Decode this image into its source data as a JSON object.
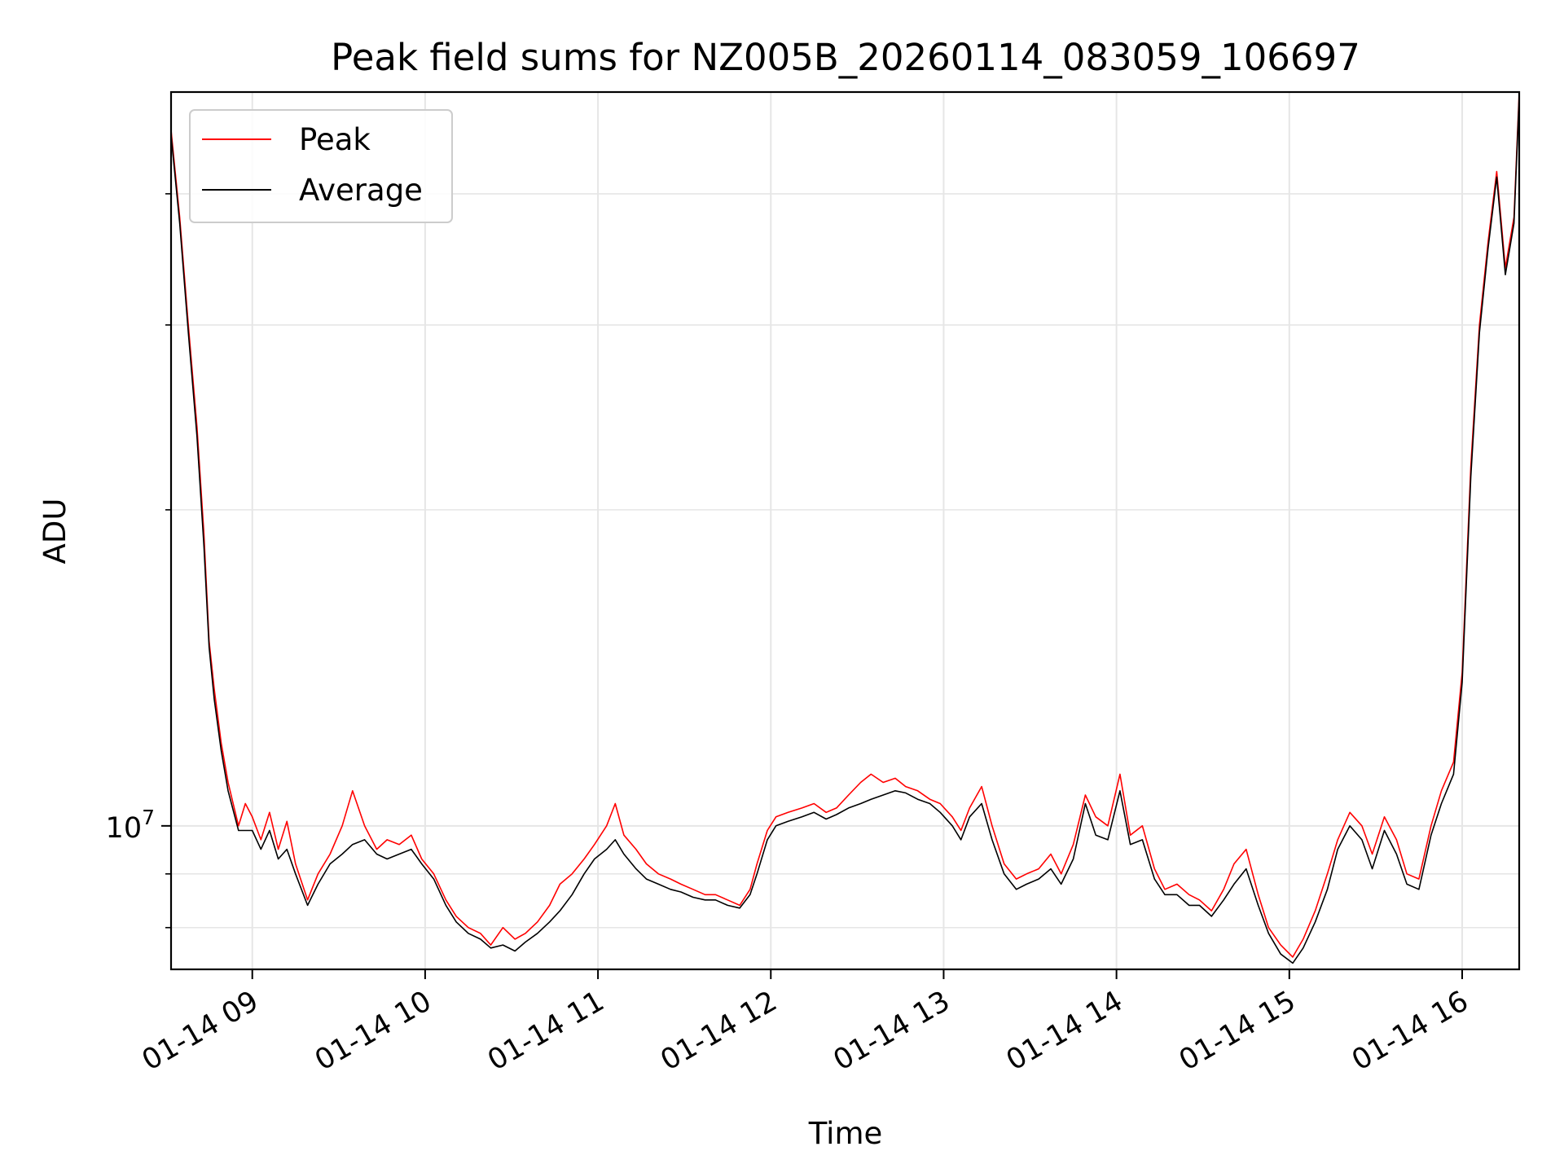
{
  "chart_data": {
    "type": "line",
    "title": "Peak field sums for NZ005B_20260114_083059_106697",
    "xlabel": "Time",
    "ylabel": "ADU",
    "yscale": "log",
    "ylim": [
      7300000,
      50000000
    ],
    "xlim_hours": [
      8.53,
      16.33
    ],
    "grid": true,
    "legend_position": "upper-left",
    "x_ticks": [
      {
        "hour": 9,
        "label": "01-14 09"
      },
      {
        "hour": 10,
        "label": "01-14 10"
      },
      {
        "hour": 11,
        "label": "01-14 11"
      },
      {
        "hour": 12,
        "label": "01-14 12"
      },
      {
        "hour": 13,
        "label": "01-14 13"
      },
      {
        "hour": 14,
        "label": "01-14 14"
      },
      {
        "hour": 15,
        "label": "01-14 15"
      },
      {
        "hour": 16,
        "label": "01-14 16"
      }
    ],
    "y_major_ticks": [
      {
        "value": 10000000,
        "base": "10",
        "exp": "7"
      }
    ],
    "y_minor_ticks": [
      8000000,
      9000000,
      20000000,
      30000000,
      40000000
    ],
    "series": [
      {
        "name": "Peak",
        "color": "#ff0000",
        "x_hours": [
          8.53,
          8.58,
          8.63,
          8.68,
          8.72,
          8.75,
          8.78,
          8.82,
          8.86,
          8.92,
          8.96,
          9.0,
          9.05,
          9.1,
          9.15,
          9.2,
          9.25,
          9.32,
          9.38,
          9.45,
          9.52,
          9.58,
          9.65,
          9.72,
          9.78,
          9.85,
          9.92,
          9.98,
          10.05,
          10.12,
          10.18,
          10.25,
          10.32,
          10.38,
          10.45,
          10.52,
          10.58,
          10.65,
          10.72,
          10.78,
          10.85,
          10.92,
          10.98,
          11.05,
          11.1,
          11.15,
          11.22,
          11.28,
          11.35,
          11.42,
          11.48,
          11.55,
          11.62,
          11.68,
          11.75,
          11.82,
          11.88,
          11.92,
          11.98,
          12.03,
          12.1,
          12.18,
          12.25,
          12.32,
          12.38,
          12.45,
          12.52,
          12.58,
          12.65,
          12.72,
          12.78,
          12.85,
          12.92,
          12.98,
          13.05,
          13.1,
          13.15,
          13.22,
          13.28,
          13.35,
          13.42,
          13.48,
          13.55,
          13.62,
          13.68,
          13.75,
          13.82,
          13.88,
          13.95,
          14.02,
          14.08,
          14.15,
          14.22,
          14.28,
          14.35,
          14.42,
          14.48,
          14.55,
          14.62,
          14.68,
          14.75,
          14.82,
          14.88,
          14.95,
          15.02,
          15.08,
          15.15,
          15.22,
          15.28,
          15.35,
          15.42,
          15.48,
          15.55,
          15.62,
          15.68,
          15.75,
          15.82,
          15.88,
          15.95,
          16.0,
          16.05,
          16.1,
          16.15,
          16.2,
          16.25,
          16.3,
          16.33
        ],
        "values": [
          46000000,
          38000000,
          30000000,
          24000000,
          19000000,
          15000000,
          13500000,
          12000000,
          11000000,
          10000000,
          10500000,
          10200000,
          9700000,
          10300000,
          9500000,
          10100000,
          9200000,
          8500000,
          9000000,
          9400000,
          10000000,
          10800000,
          10000000,
          9500000,
          9700000,
          9600000,
          9800000,
          9300000,
          9000000,
          8500000,
          8200000,
          8000000,
          7900000,
          7700000,
          8000000,
          7800000,
          7900000,
          8100000,
          8400000,
          8800000,
          9000000,
          9300000,
          9600000,
          10000000,
          10500000,
          9800000,
          9500000,
          9200000,
          9000000,
          8900000,
          8800000,
          8700000,
          8600000,
          8600000,
          8500000,
          8400000,
          8700000,
          9200000,
          9900000,
          10200000,
          10300000,
          10400000,
          10500000,
          10300000,
          10400000,
          10700000,
          11000000,
          11200000,
          11000000,
          11100000,
          10900000,
          10800000,
          10600000,
          10500000,
          10200000,
          9900000,
          10400000,
          10900000,
          10000000,
          9200000,
          8900000,
          9000000,
          9100000,
          9400000,
          9000000,
          9600000,
          10700000,
          10200000,
          10000000,
          11200000,
          9800000,
          10000000,
          9100000,
          8700000,
          8800000,
          8600000,
          8500000,
          8300000,
          8700000,
          9200000,
          9500000,
          8600000,
          8000000,
          7700000,
          7500000,
          7800000,
          8300000,
          9000000,
          9700000,
          10300000,
          10000000,
          9400000,
          10200000,
          9700000,
          9000000,
          8900000,
          10000000,
          10800000,
          11500000,
          14000000,
          22000000,
          30000000,
          36000000,
          42000000,
          34000000,
          38000000,
          50000000
        ]
      },
      {
        "name": "Average",
        "color": "#000000",
        "x_hours": [
          8.53,
          8.58,
          8.63,
          8.68,
          8.72,
          8.75,
          8.78,
          8.82,
          8.86,
          8.92,
          8.96,
          9.0,
          9.05,
          9.1,
          9.15,
          9.2,
          9.25,
          9.32,
          9.38,
          9.45,
          9.52,
          9.58,
          9.65,
          9.72,
          9.78,
          9.85,
          9.92,
          9.98,
          10.05,
          10.12,
          10.18,
          10.25,
          10.32,
          10.38,
          10.45,
          10.52,
          10.58,
          10.65,
          10.72,
          10.78,
          10.85,
          10.92,
          10.98,
          11.05,
          11.1,
          11.15,
          11.22,
          11.28,
          11.35,
          11.42,
          11.48,
          11.55,
          11.62,
          11.68,
          11.75,
          11.82,
          11.88,
          11.92,
          11.98,
          12.03,
          12.1,
          12.18,
          12.25,
          12.32,
          12.38,
          12.45,
          12.52,
          12.58,
          12.65,
          12.72,
          12.78,
          12.85,
          12.92,
          12.98,
          13.05,
          13.1,
          13.15,
          13.22,
          13.28,
          13.35,
          13.42,
          13.48,
          13.55,
          13.62,
          13.68,
          13.75,
          13.82,
          13.88,
          13.95,
          14.02,
          14.08,
          14.15,
          14.22,
          14.28,
          14.35,
          14.42,
          14.48,
          14.55,
          14.62,
          14.68,
          14.75,
          14.82,
          14.88,
          14.95,
          15.02,
          15.08,
          15.15,
          15.22,
          15.28,
          15.35,
          15.42,
          15.48,
          15.55,
          15.62,
          15.68,
          15.75,
          15.82,
          15.88,
          15.95,
          16.0,
          16.05,
          16.1,
          16.15,
          16.2,
          16.25,
          16.3,
          16.33
        ],
        "values": [
          45500000,
          37500000,
          29500000,
          23500000,
          18500000,
          14800000,
          13200000,
          11800000,
          10800000,
          9900000,
          9900000,
          9900000,
          9500000,
          9900000,
          9300000,
          9500000,
          9000000,
          8400000,
          8800000,
          9200000,
          9400000,
          9600000,
          9700000,
          9400000,
          9300000,
          9400000,
          9500000,
          9200000,
          8900000,
          8400000,
          8100000,
          7900000,
          7800000,
          7650000,
          7700000,
          7600000,
          7750000,
          7900000,
          8100000,
          8300000,
          8600000,
          9000000,
          9300000,
          9500000,
          9700000,
          9400000,
          9100000,
          8900000,
          8800000,
          8700000,
          8650000,
          8550000,
          8500000,
          8500000,
          8400000,
          8350000,
          8600000,
          9000000,
          9700000,
          10000000,
          10100000,
          10200000,
          10300000,
          10150000,
          10250000,
          10400000,
          10500000,
          10600000,
          10700000,
          10800000,
          10750000,
          10600000,
          10500000,
          10300000,
          10000000,
          9700000,
          10200000,
          10500000,
          9700000,
          9000000,
          8700000,
          8800000,
          8900000,
          9100000,
          8800000,
          9300000,
          10500000,
          9800000,
          9700000,
          10800000,
          9600000,
          9700000,
          8900000,
          8600000,
          8600000,
          8400000,
          8400000,
          8200000,
          8500000,
          8800000,
          9100000,
          8400000,
          7900000,
          7550000,
          7400000,
          7650000,
          8100000,
          8700000,
          9500000,
          10000000,
          9700000,
          9100000,
          9900000,
          9400000,
          8800000,
          8700000,
          9800000,
          10500000,
          11200000,
          13700000,
          21500000,
          29500000,
          35500000,
          41500000,
          33500000,
          37500000,
          49500000
        ]
      }
    ],
    "legend": [
      {
        "label": "Peak",
        "color": "#ff0000"
      },
      {
        "label": "Average",
        "color": "#000000"
      }
    ]
  }
}
